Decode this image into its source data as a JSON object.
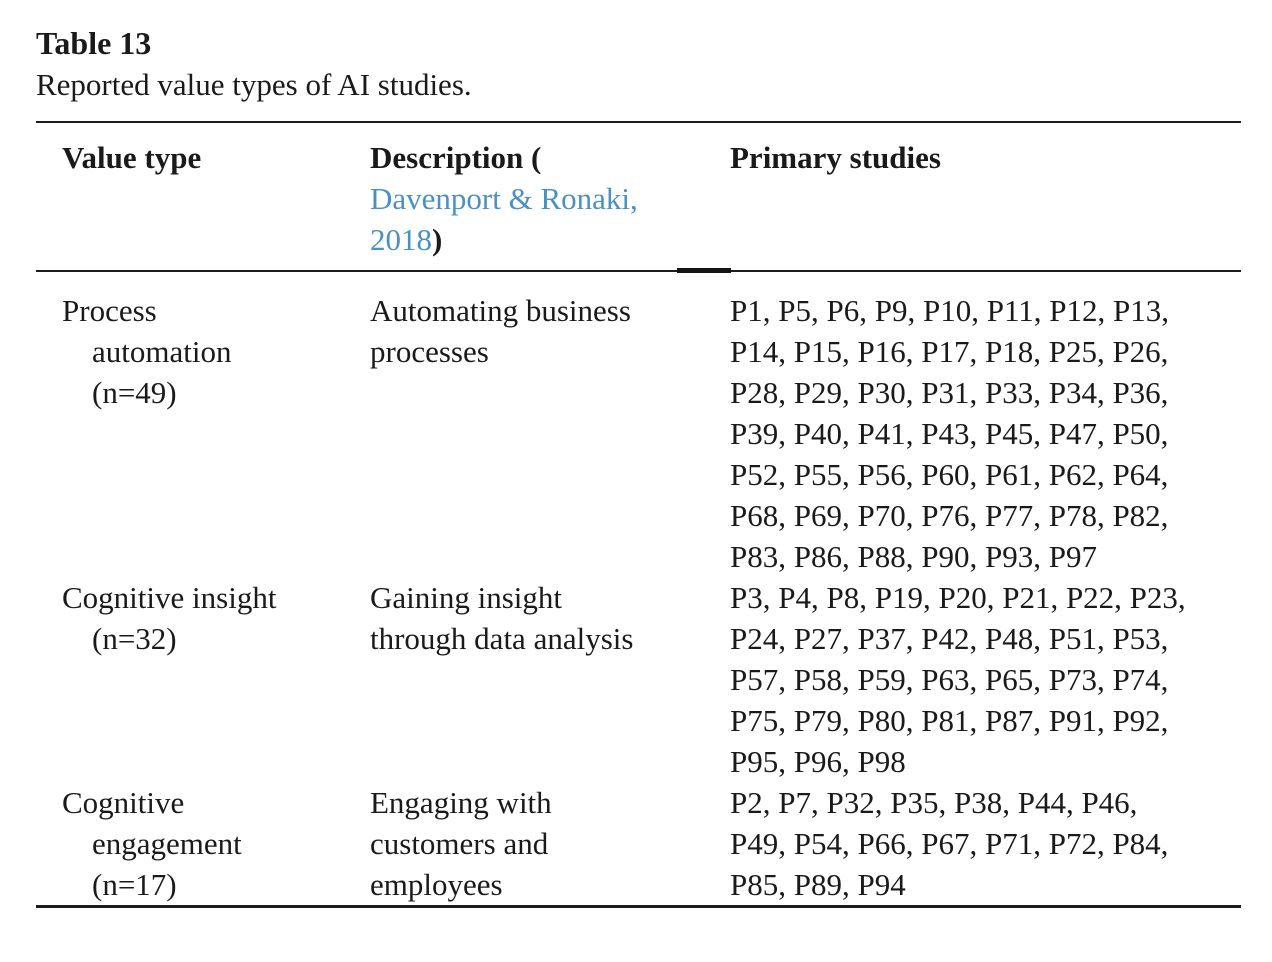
{
  "page": {
    "title": "Table 13",
    "caption": "Reported value types of AI studies."
  },
  "colors": {
    "text": "#1a1a1a",
    "rule": "#1c1c1c",
    "link_blue": "#4a91c2"
  },
  "table": {
    "headers": {
      "value_type": "Value type",
      "description_prefix": "Description (",
      "description_link": "Davenport & Ronaki, 2018",
      "description_suffix": ")",
      "primary_studies": "Primary studies"
    },
    "rows": [
      {
        "value_type": "Process automation (n=49)",
        "value_type_lines": [
          "Process",
          "automation",
          "(n=49)"
        ],
        "description": "Automating business processes",
        "description_lines": [
          "Automating business",
          "processes"
        ],
        "studies_lines": [
          "P1, P5, P6, P9, P10, P11, P12, P13,",
          "P14, P15, P16, P17, P18, P25, P26,",
          "P28, P29, P30, P31, P33, P34, P36,",
          "P39, P40, P41, P43, P45, P47, P50,",
          "P52, P55, P56, P60, P61, P62, P64,",
          "P68, P69, P70, P76, P77, P78, P82,",
          "P83, P86, P88, P90, P93, P97"
        ]
      },
      {
        "value_type": "Cognitive insight (n=32)",
        "value_type_lines": [
          "Cognitive insight",
          "(n=32)"
        ],
        "description": "Gaining insight through data analysis",
        "description_lines": [
          "Gaining insight",
          "through data analysis"
        ],
        "studies_lines": [
          "P3, P4, P8, P19, P20, P21, P22, P23,",
          "P24, P27, P37, P42, P48, P51, P53,",
          "P57, P58, P59, P63, P65, P73, P74,",
          "P75, P79, P80, P81, P87, P91, P92,",
          "P95, P96, P98"
        ]
      },
      {
        "value_type": "Cognitive engagement (n=17)",
        "value_type_lines": [
          "Cognitive",
          "engagement",
          "(n=17)"
        ],
        "description": "Engaging with customers and employees",
        "description_lines": [
          "Engaging with",
          "customers and",
          "employees"
        ],
        "studies_lines": [
          "P2, P7, P32, P35, P38, P44, P46,",
          "P49, P54, P66, P67, P71, P72, P84,",
          "P85, P89, P94"
        ]
      }
    ]
  }
}
